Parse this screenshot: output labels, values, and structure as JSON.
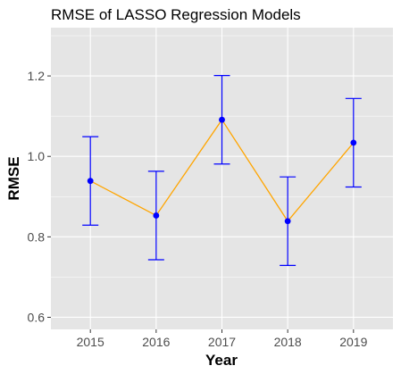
{
  "chart_data": {
    "type": "line",
    "title": "RMSE of LASSO Regression Models",
    "xlabel": "Year",
    "ylabel": "RMSE",
    "categories": [
      "2015",
      "2016",
      "2017",
      "2018",
      "2019"
    ],
    "series": [
      {
        "values": [
          0.939,
          0.853,
          1.091,
          0.839,
          1.034
        ],
        "lower": [
          0.829,
          0.743,
          0.981,
          0.729,
          0.924
        ],
        "upper": [
          1.049,
          0.963,
          1.201,
          0.949,
          1.144
        ],
        "line_color": "#ffa500",
        "point_color": "#0000ff",
        "errorbar_color": "#0000ff"
      }
    ],
    "yticks": [
      0.6,
      0.8,
      1.0,
      1.2
    ],
    "ytick_labels": [
      "0.6",
      "0.8",
      "1.0",
      "1.2"
    ],
    "ylim": [
      0.57,
      1.32
    ],
    "grid": true,
    "panel_background": "#e5e5e5",
    "grid_color": "#ffffff"
  }
}
